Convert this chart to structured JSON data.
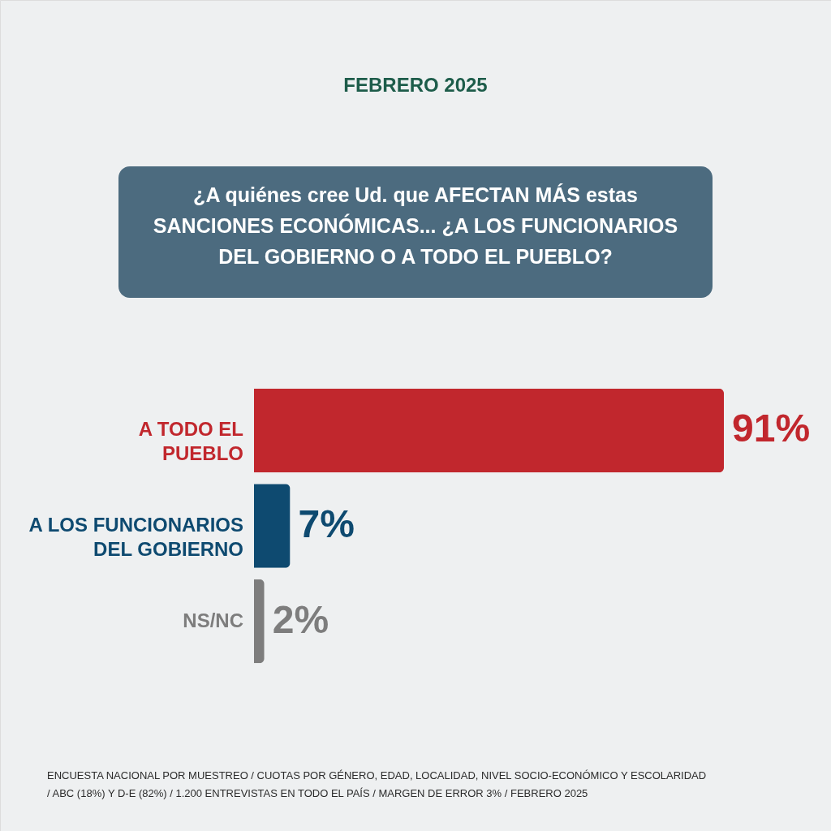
{
  "chart_data": {
    "type": "bar",
    "orientation": "horizontal",
    "title": "¿A quiénes cree Ud. que AFECTAN MÁS estas SANCIONES ECONÓMICAS... ¿A LOS FUNCIONARIOS DEL GOBIERNO O A TODO EL PUEBLO?",
    "subtitle": "FEBRERO 2025",
    "categories": [
      "A TODO EL PUEBLO",
      "A LOS FUNCIONARIOS DEL GOBIERNO",
      "NS/NC"
    ],
    "values": [
      91,
      7,
      2
    ],
    "colors": [
      "#c1272d",
      "#0e4a70",
      "#7d7d7d"
    ],
    "value_labels": [
      "91%",
      "7%",
      "2%"
    ],
    "annotations": [
      "ENCUESTA NACIONAL POR MUESTREO / CUOTAS POR GÉNERO, EDAD, LOCALIDAD, NIVEL SOCIO-ECONÓMICO Y ESCOLARIDAD / ABC (18%) Y D-E (82%) / 1.200 ENTREVISTAS EN TODO EL PAÍS / MARGEN DE ERROR 3% / FEBRERO 2025"
    ]
  }
}
